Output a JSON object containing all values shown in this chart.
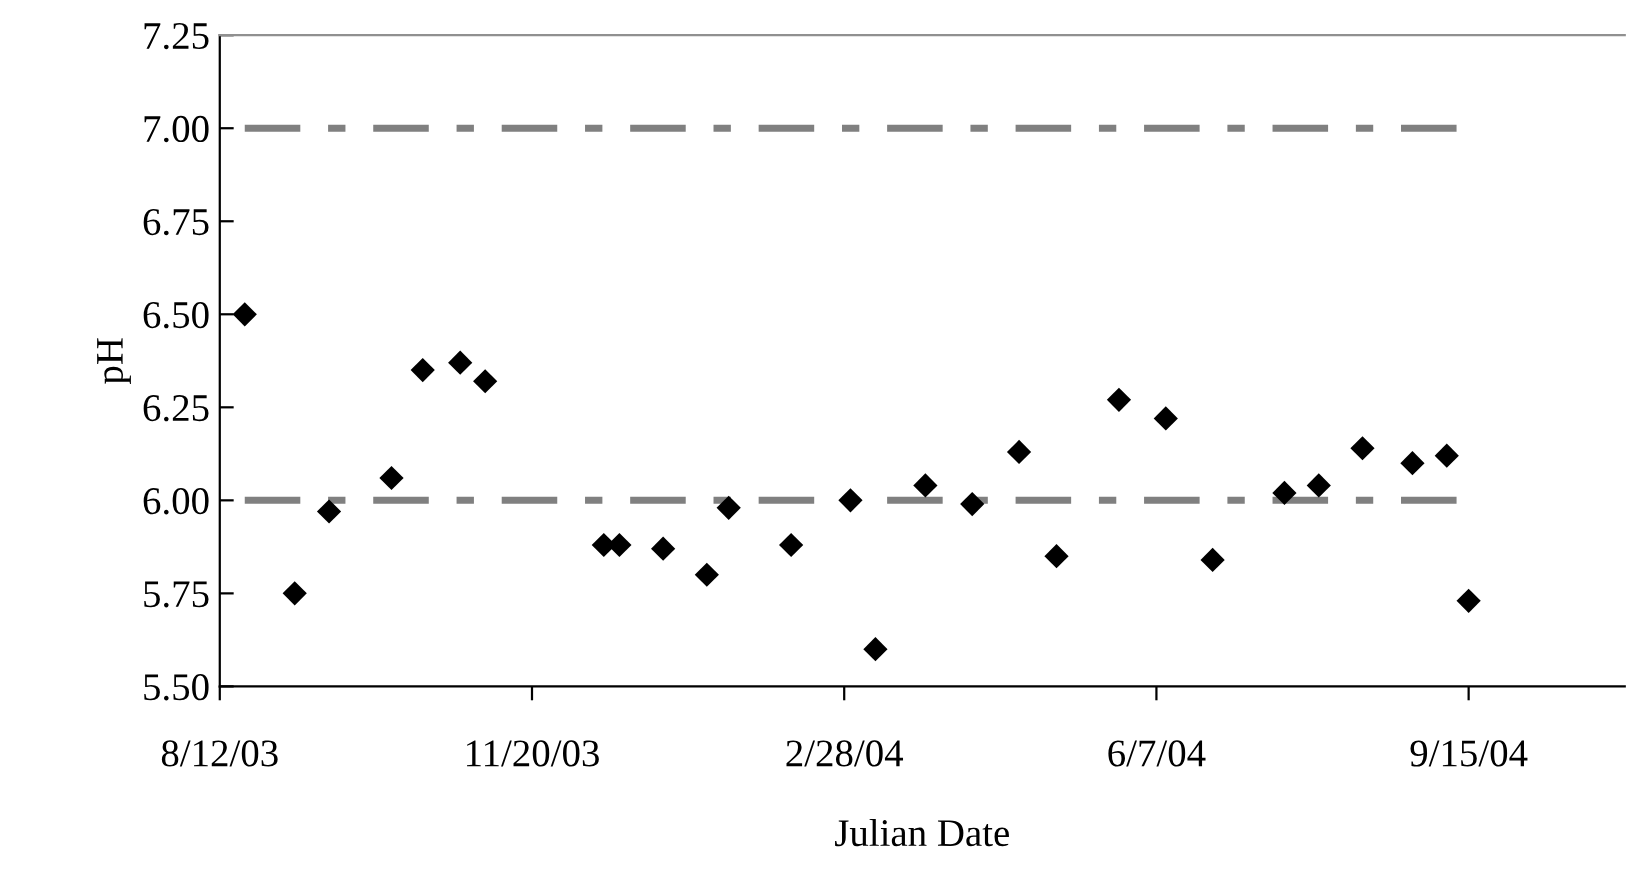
{
  "chart_data": {
    "type": "scatter",
    "xlabel": "Julian Date",
    "ylabel": "pH",
    "x": [
      "2003-08-20",
      "2003-09-05",
      "2003-09-16",
      "2003-10-06",
      "2003-10-16",
      "2003-10-28",
      "2003-11-05",
      "2003-12-13",
      "2003-12-18",
      "2004-01-01",
      "2004-01-15",
      "2004-01-22",
      "2004-02-11",
      "2004-03-01",
      "2004-03-09",
      "2004-03-25",
      "2004-04-09",
      "2004-04-24",
      "2004-05-06",
      "2004-05-26",
      "2004-06-10",
      "2004-06-25",
      "2004-07-18",
      "2004-07-29",
      "2004-08-12",
      "2004-08-28",
      "2004-09-08",
      "2004-09-15"
    ],
    "series": [
      {
        "color": "#000000",
        "values": [
          6.5,
          5.75,
          5.97,
          6.06,
          6.35,
          6.37,
          6.32,
          5.88,
          5.88,
          5.87,
          5.8,
          5.98,
          5.88,
          6.0,
          5.6,
          6.04,
          5.99,
          6.13,
          5.85,
          6.27,
          6.22,
          5.84,
          6.02,
          6.04,
          6.14,
          6.1,
          6.12,
          5.73
        ]
      }
    ],
    "marker": "diamond",
    "grid": false,
    "legend": false,
    "xlim": [
      "2003-08-12",
      "2004-11-04"
    ],
    "xticks": [
      {
        "value": "2003-08-12",
        "label": "8/12/03"
      },
      {
        "value": "2003-11-20",
        "label": "11/20/03"
      },
      {
        "value": "2004-02-28",
        "label": "2/28/04"
      },
      {
        "value": "2004-06-07",
        "label": "6/7/04"
      },
      {
        "value": "2004-09-15",
        "label": "9/15/04"
      }
    ],
    "ylim": [
      5.5,
      7.25
    ],
    "yticks": [
      {
        "value": 5.5,
        "label": "5.50"
      },
      {
        "value": 5.75,
        "label": "5.75"
      },
      {
        "value": 6.0,
        "label": "6.00"
      },
      {
        "value": 6.25,
        "label": "6.25"
      },
      {
        "value": 6.5,
        "label": "6.50"
      },
      {
        "value": 6.75,
        "label": "6.75"
      },
      {
        "value": 7.0,
        "label": "7.00"
      },
      {
        "value": 7.25,
        "label": "7.25"
      }
    ],
    "ref_lines": [
      {
        "axis": "y",
        "value": 7.0,
        "color": "#808080",
        "line_style": "dashdot"
      },
      {
        "axis": "y",
        "value": 6.0,
        "color": "#808080",
        "line_style": "dashdot"
      }
    ]
  }
}
